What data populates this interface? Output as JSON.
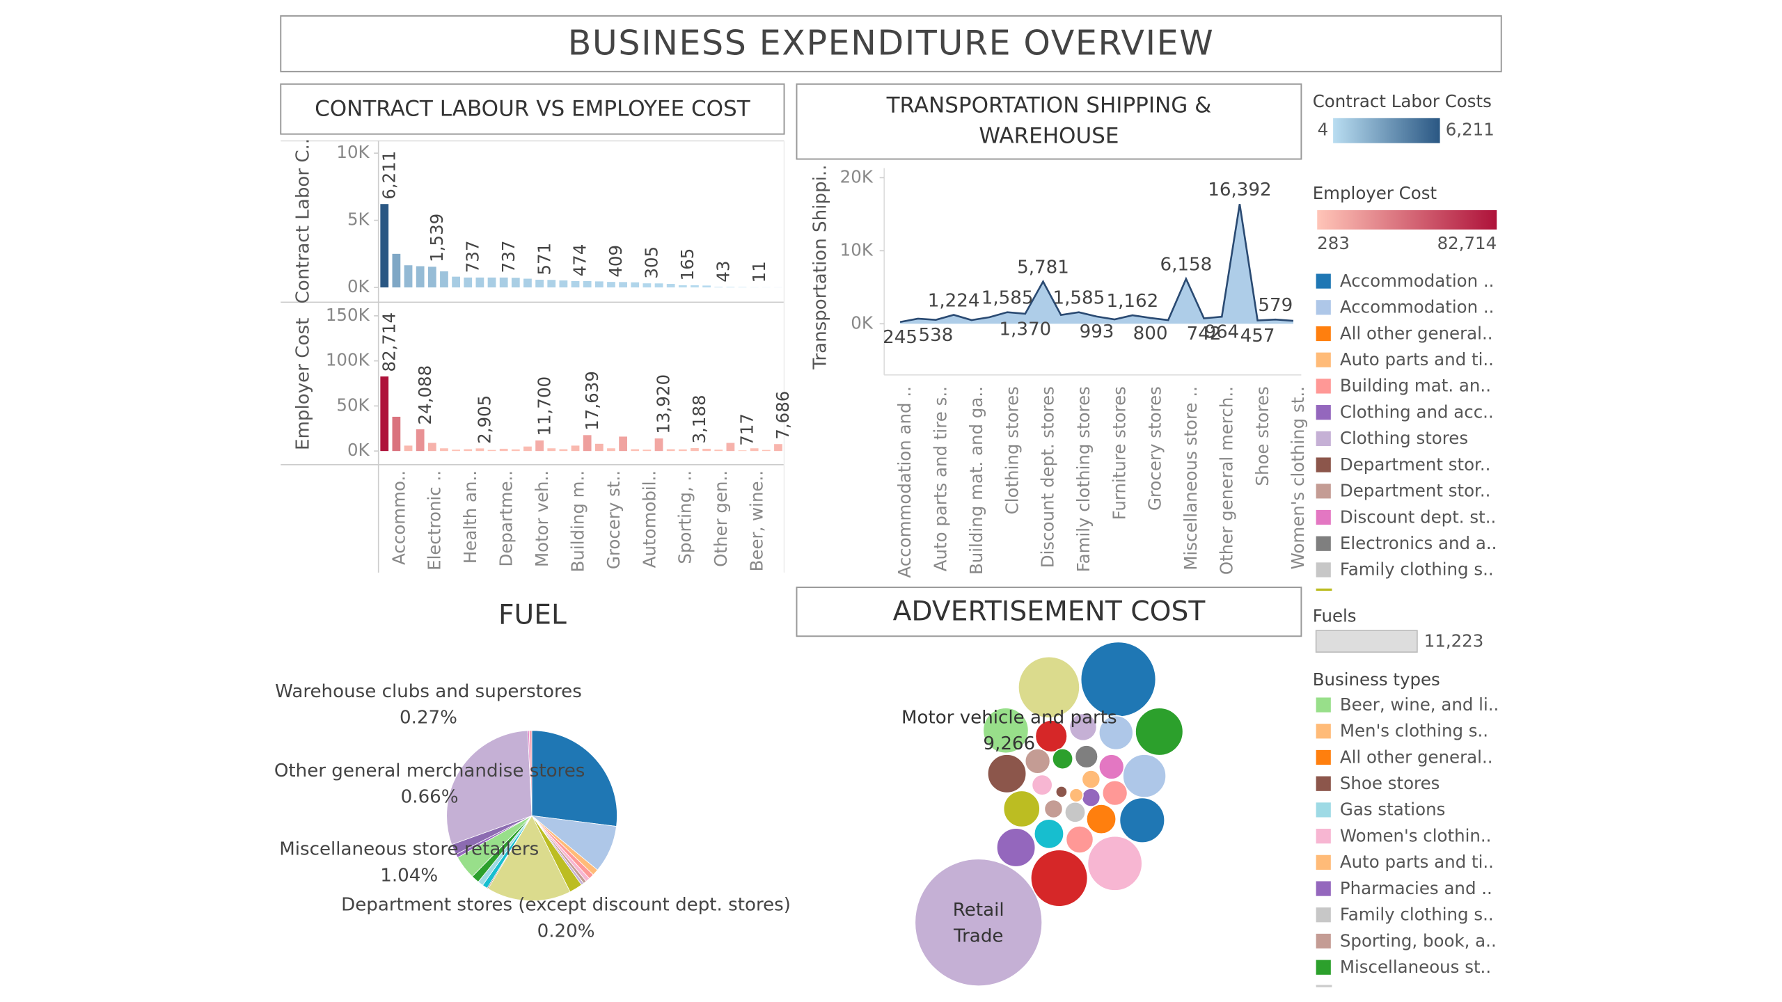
{
  "title": "BUSINESS EXPENDITURE OVERVIEW",
  "chart_data": [
    {
      "type": "bar",
      "title": "CONTRACT LABOUR VS EMPLOYEE COST",
      "categories": [
        null,
        "Accommo..",
        null,
        null,
        "Electronic ..",
        null,
        null,
        "Health an..",
        null,
        null,
        "Departme..",
        null,
        null,
        "Motor veh..",
        null,
        null,
        "Building m..",
        null,
        null,
        "Grocery st..",
        null,
        null,
        "Automobil..",
        null,
        null,
        "Sporting, ..",
        null,
        null,
        "Other gen..",
        null,
        null,
        "Beer, wine..",
        null,
        null
      ],
      "panels": [
        {
          "ylabel": "Contract Labor C..",
          "color_legend": "contract",
          "values": [
            6211,
            2500,
            1650,
            1580,
            1539,
            1200,
            800,
            737,
            737,
            737,
            737,
            720,
            650,
            571,
            560,
            520,
            474,
            470,
            450,
            409,
            400,
            380,
            305,
            300,
            260,
            165,
            160,
            140,
            43,
            40,
            30,
            11,
            10,
            8
          ],
          "value_labels": [
            "6,211",
            null,
            null,
            null,
            "1,539",
            null,
            null,
            "737",
            null,
            null,
            "737",
            null,
            null,
            "571",
            null,
            null,
            "474",
            null,
            null,
            "409",
            null,
            null,
            "305",
            null,
            null,
            "165",
            null,
            null,
            "43",
            null,
            null,
            "11",
            null,
            null
          ],
          "ylim": [
            0,
            11000
          ],
          "yticks": [
            {
              "value": 0,
              "label": "0K"
            },
            {
              "value": 5000,
              "label": "5K"
            },
            {
              "value": 10000,
              "label": "10K"
            }
          ]
        },
        {
          "ylabel": "Employer Cost",
          "color_legend": "employer",
          "values": [
            82714,
            38000,
            6000,
            24088,
            9000,
            3000,
            1500,
            2000,
            2905,
            1200,
            2500,
            1800,
            5000,
            11700,
            3000,
            2000,
            6000,
            17639,
            8000,
            3000,
            16000,
            2000,
            1500,
            13920,
            2000,
            1800,
            3188,
            2500,
            1500,
            9000,
            717,
            3000,
            1200,
            7686
          ],
          "value_labels": [
            "82,714",
            null,
            null,
            "24,088",
            null,
            null,
            null,
            null,
            "2,905",
            null,
            null,
            null,
            null,
            "11,700",
            null,
            null,
            null,
            "17,639",
            null,
            null,
            null,
            null,
            null,
            "13,920",
            null,
            null,
            "3,188",
            null,
            null,
            null,
            "717",
            null,
            null,
            "7,686"
          ],
          "ylim": [
            0,
            150000
          ],
          "yticks": [
            {
              "value": 0,
              "label": "0K"
            },
            {
              "value": 50000,
              "label": "50K"
            },
            {
              "value": 100000,
              "label": "100K"
            },
            {
              "value": 150000,
              "label": "150K"
            }
          ]
        }
      ]
    },
    {
      "type": "area",
      "title": "TRANSPORTATION SHIPPING & WAREHOUSE",
      "ylabel": "Transportation Shippi..",
      "categories": [
        "Accommodation and ..",
        null,
        "Auto parts and tire s..",
        null,
        "Building mat. and ga..",
        null,
        "Clothing stores",
        null,
        "Discount dept. stores",
        null,
        "Family clothing stores",
        null,
        "Furniture stores",
        null,
        "Grocery stores",
        null,
        "Miscellaneous store ..",
        null,
        "Other general merch..",
        null,
        "Shoe stores",
        null,
        "Women's clothing st.."
      ],
      "values": [
        245,
        700,
        538,
        1224,
        500,
        900,
        1585,
        1370,
        5781,
        1200,
        1585,
        993,
        600,
        1162,
        800,
        500,
        6158,
        742,
        964,
        16392,
        457,
        579,
        400
      ],
      "value_labels": [
        "245",
        null,
        "538",
        "1,224",
        null,
        null,
        "1,585",
        "1,370",
        "5,781",
        null,
        "1,585",
        "993",
        null,
        "1,162",
        "800",
        null,
        "6,158",
        "742",
        "964",
        "16,392",
        "457",
        "579",
        null
      ],
      "ylim": [
        0,
        21000
      ],
      "yticks": [
        {
          "value": 0,
          "label": "0K"
        },
        {
          "value": 10000,
          "label": "10K"
        },
        {
          "value": 20000,
          "label": "20K"
        }
      ],
      "color": "#aecde8",
      "line_color": "#2a4a72"
    },
    {
      "type": "pie",
      "title": "FUEL",
      "categories": [
        null,
        null,
        null,
        null,
        null,
        null,
        null,
        null,
        null,
        "Department stores (except discount dept. stores)",
        null,
        "Miscellaneous store retailers",
        null,
        null,
        "Other general merchandise stores",
        null,
        null,
        "Warehouse clubs and superstores",
        null
      ],
      "values": [
        27,
        9,
        1.2,
        1,
        0.8,
        0.6,
        0.5,
        2.5,
        16,
        0.2,
        1,
        1.04,
        1.5,
        4.5,
        0.66,
        2,
        29.73,
        0.27,
        0.5
      ],
      "value_labels": [
        null,
        null,
        null,
        null,
        null,
        null,
        null,
        null,
        null,
        "0.20%",
        null,
        "1.04%",
        null,
        null,
        "0.66%",
        null,
        null,
        "0.27%",
        null
      ],
      "colors": [
        "#1f77b4",
        "#aec7e8",
        "#ffbb78",
        "#ff9896",
        "#f7b6d2",
        "#c49c94",
        "#c5b0d5",
        "#bcbd22",
        "#dbdb8d",
        "#8c564b",
        "#17becf",
        "#9edae5",
        "#2ca02c",
        "#98df8a",
        "#9467bd",
        "#8c6bb1",
        "#c5b0d5",
        "#e377c2",
        "#f4a6b4"
      ]
    },
    {
      "type": "bubble",
      "title": "ADVERTISEMENT COST",
      "categories": [
        "Retail Trade",
        null,
        null,
        "Motor vehicle and parts",
        null,
        null,
        null,
        null,
        null,
        null,
        null,
        null,
        null,
        null,
        null,
        null,
        null,
        null,
        null,
        null,
        null,
        null,
        null,
        null,
        null,
        null,
        null,
        null,
        null,
        null
      ],
      "values": [
        72650,
        25230,
        16890,
        9266,
        10220,
        5212,
        4540,
        3336,
        8363,
        6695,
        2803,
        1876,
        2317,
        2803,
        5930,
        1876,
        1483,
        2803,
        9100,
        3915,
        1483,
        1876,
        3915,
        6695,
        3336,
        13343,
        14478,
        834,
        579,
        1483
      ],
      "value_labels": [
        null,
        null,
        null,
        "9,266",
        null,
        null,
        null,
        null,
        null,
        null,
        null,
        null,
        null,
        null,
        null,
        null,
        null,
        null,
        null,
        null,
        null,
        null,
        null,
        null,
        null,
        null,
        null,
        null,
        null,
        null
      ],
      "colors": [
        "#c5b0d5",
        "#1f77b4",
        "#dbdb8d",
        "#98df8a",
        "#2ca02c",
        "#aec7e8",
        "#d62728",
        "#c5b0d5",
        "#aec7e8",
        "#8c564b",
        "#c49c94",
        "#2ca02c",
        "#7f7f7f",
        "#e377c2",
        "#bcbd22",
        "#f7b6d2",
        "#ffbb78",
        "#ff9896",
        "#1f77b4",
        "#ff7f0e",
        "#9467bd",
        "#c7c7c7",
        "#17becf",
        "#9467bd",
        "#ff9896",
        "#f7b6d2",
        "#d62728",
        "#ffbb78",
        "#8c564b",
        "#c49c94"
      ]
    }
  ],
  "legends": {
    "contract": {
      "title": "Contract Labor Costs",
      "range": [
        4,
        {
          "value": 6211,
          "label": "6,211"
        }
      ],
      "colors": [
        "#b9ddf1",
        "#2a5783"
      ]
    },
    "employer": {
      "title": "Employer Cost",
      "range": [
        283,
        {
          "value": 82714,
          "label": "82,714"
        }
      ],
      "colors": [
        "#ffc5b8",
        "#ae123a"
      ]
    },
    "categories": {
      "items": [
        {
          "name": "Accommodation ..",
          "color": "#1f77b4"
        },
        {
          "name": "Accommodation ..",
          "color": "#aec7e8"
        },
        {
          "name": "All other general..",
          "color": "#ff7f0e"
        },
        {
          "name": "Auto parts and ti..",
          "color": "#ffbb78"
        },
        {
          "name": "Building mat. an..",
          "color": "#ff9896"
        },
        {
          "name": "Clothing and acc..",
          "color": "#9467bd"
        },
        {
          "name": "Clothing stores",
          "color": "#c5b0d5"
        },
        {
          "name": "Department stor..",
          "color": "#8c564b"
        },
        {
          "name": "Department stor..",
          "color": "#c49c94"
        },
        {
          "name": "Discount dept. st..",
          "color": "#e377c2"
        },
        {
          "name": "Electronics and a..",
          "color": "#7f7f7f"
        },
        {
          "name": "Family clothing s..",
          "color": "#c7c7c7"
        }
      ]
    },
    "fuels": {
      "title": "Fuels",
      "value": {
        "value": 11223,
        "label": "11,223"
      }
    },
    "business_types": {
      "title": "Business types",
      "items": [
        {
          "name": "Beer, wine, and li..",
          "color": "#98df8a"
        },
        {
          "name": "Men's clothing s..",
          "color": "#ffbb78"
        },
        {
          "name": "All other general..",
          "color": "#ff7f0e"
        },
        {
          "name": "Shoe stores",
          "color": "#8c564b"
        },
        {
          "name": "Gas stations",
          "color": "#9edae5"
        },
        {
          "name": "Women's clothin..",
          "color": "#f7b6d2"
        },
        {
          "name": "Auto parts and ti..",
          "color": "#ffbb78"
        },
        {
          "name": "Pharmacies and ..",
          "color": "#9467bd"
        },
        {
          "name": "Family clothing s..",
          "color": "#c7c7c7"
        },
        {
          "name": "Sporting, book, a..",
          "color": "#c49c94"
        },
        {
          "name": "Miscellaneous st..",
          "color": "#2ca02c"
        }
      ]
    }
  }
}
